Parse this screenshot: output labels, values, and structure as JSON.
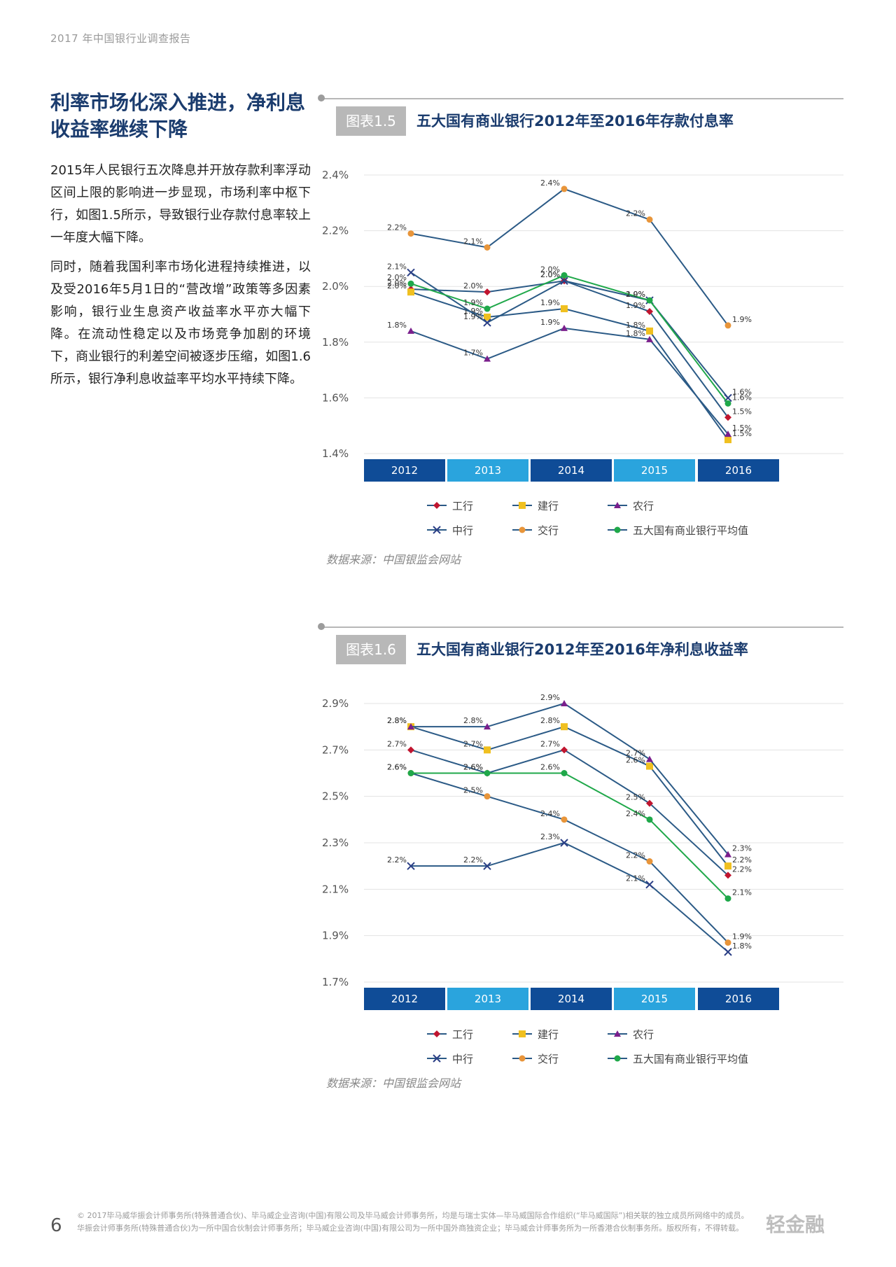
{
  "header": "2017 年中国银行业调查报告",
  "section_title": "利率市场化深入推进，净利息收益率继续下降",
  "paragraphs": [
    "2015年人民银行五次降息并开放存款利率浮动区间上限的影响进一步显现，市场利率中枢下行，如图1.5所示，导致银行业存款付息率较上一年度大幅下降。",
    "同时，随着我国利率市场化进程持续推进，以及受2016年5月1日的“营改增”政策等多因素影响，银行业生息资产收益率水平亦大幅下降。在流动性稳定以及市场竞争加剧的环境下，商业银行的利差空间被逐步压缩，如图1.6所示，银行净利息收益率平均水平持续下降。"
  ],
  "chart_data": [
    {
      "type": "line",
      "figure_label": "图表1.5",
      "title": "五大国有商业银行2012年至2016年存款付息率",
      "categories": [
        "2012",
        "2013",
        "2014",
        "2015",
        "2016"
      ],
      "ylim": [
        1.4,
        2.4
      ],
      "yticks": [
        "1.4%",
        "1.6%",
        "1.8%",
        "2.0%",
        "2.2%",
        "2.4%"
      ],
      "grid": true,
      "legend_position": "bottom",
      "series": [
        {
          "name": "工行",
          "color": "#c0152f",
          "marker": "diamond",
          "values": [
            1.99,
            1.98,
            2.02,
            1.91,
            1.53
          ],
          "labels": [
            "2.0%",
            "2.0%",
            "2.0%",
            "1.9%",
            "1.5%"
          ]
        },
        {
          "name": "建行",
          "color": "#f0c020",
          "marker": "square",
          "values": [
            1.98,
            1.89,
            1.92,
            1.84,
            1.45
          ],
          "labels": [
            "2.0%",
            "1.9%",
            "1.9%",
            "1.8%",
            "1.5%"
          ]
        },
        {
          "name": "农行",
          "color": "#7a1f8c",
          "marker": "triangle",
          "values": [
            1.84,
            1.74,
            1.85,
            1.81,
            1.47
          ],
          "labels": [
            "1.8%",
            "1.7%",
            "1.9%",
            "1.8%",
            "1.5%"
          ]
        },
        {
          "name": "中行",
          "color": "#2b3f86",
          "marker": "x",
          "values": [
            2.05,
            1.87,
            2.02,
            1.95,
            1.6
          ],
          "labels": [
            "2.1%",
            "1.9%",
            "2.0%",
            "1.9%",
            "1.6%"
          ]
        },
        {
          "name": "交行",
          "color": "#e8953a",
          "marker": "circle",
          "values": [
            2.19,
            2.14,
            2.35,
            2.24,
            1.86
          ],
          "labels": [
            "2.2%",
            "2.1%",
            "2.4%",
            "2.2%",
            "1.9%"
          ]
        },
        {
          "name": "五大国有商业银行平均值",
          "color": "#1fa84a",
          "marker": "circle",
          "values": [
            2.01,
            1.92,
            2.04,
            1.95,
            1.58
          ],
          "labels": [
            "2.0%",
            "1.9%",
            "2.0%",
            "2.0%",
            "1.6%"
          ]
        }
      ],
      "source": "数据来源：中国银监会网站"
    },
    {
      "type": "line",
      "figure_label": "图表1.6",
      "title": "五大国有商业银行2012年至2016年净利息收益率",
      "categories": [
        "2012",
        "2013",
        "2014",
        "2015",
        "2016"
      ],
      "ylim": [
        1.7,
        2.9
      ],
      "yticks": [
        "1.7%",
        "1.9%",
        "2.1%",
        "2.3%",
        "2.5%",
        "2.7%",
        "2.9%"
      ],
      "grid": true,
      "legend_position": "bottom",
      "series": [
        {
          "name": "工行",
          "color": "#c0152f",
          "marker": "diamond",
          "values": [
            2.7,
            2.6,
            2.7,
            2.47,
            2.16
          ],
          "labels": [
            "2.7%",
            "2.6%",
            "2.7%",
            "2.5%",
            "2.2%"
          ]
        },
        {
          "name": "建行",
          "color": "#f0c020",
          "marker": "square",
          "values": [
            2.8,
            2.7,
            2.8,
            2.63,
            2.2
          ],
          "labels": [
            "2.8%",
            "2.7%",
            "2.8%",
            "2.6%",
            "2.2%"
          ]
        },
        {
          "name": "农行",
          "color": "#7a1f8c",
          "marker": "triangle",
          "values": [
            2.8,
            2.8,
            2.9,
            2.66,
            2.25
          ],
          "labels": [
            "2.8%",
            "2.8%",
            "2.9%",
            "2.7%",
            "2.3%"
          ]
        },
        {
          "name": "中行",
          "color": "#2b3f86",
          "marker": "x",
          "values": [
            2.2,
            2.2,
            2.3,
            2.12,
            1.83
          ],
          "labels": [
            "2.2%",
            "2.2%",
            "2.3%",
            "2.1%",
            "1.8%"
          ]
        },
        {
          "name": "交行",
          "color": "#e8953a",
          "marker": "circle",
          "values": [
            2.6,
            2.5,
            2.4,
            2.22,
            1.87
          ],
          "labels": [
            "2.6%",
            "2.5%",
            "2.4%",
            "2.2%",
            "1.9%"
          ]
        },
        {
          "name": "五大国有商业银行平均值",
          "color": "#1fa84a",
          "marker": "circle",
          "values": [
            2.6,
            2.6,
            2.6,
            2.4,
            2.06
          ],
          "labels": [
            "2.6%",
            "2.6%",
            "2.6%",
            "2.4%",
            "2.1%"
          ]
        }
      ],
      "source": "数据来源：中国银监会网站"
    }
  ],
  "colors": {
    "title_blue": "#1b3c6e",
    "year_band_dark": "#0f4c97",
    "year_band_light": "#2aa4dd",
    "series_line": "#2b5a86"
  },
  "footer": {
    "page_number": "6",
    "line1": "© 2017毕马威华振会计师事务所(特殊普通合伙)、毕马威企业咨询(中国)有限公司及毕马威会计师事务所，均是与瑞士实体—毕马威国际合作组织(“毕马威国际”)相关联的独立成员所网络中的成员。",
    "line2": "华振会计师事务所(特殊普通合伙)为一所中国合伙制会计师事务所；毕马威企业咨询(中国)有限公司为一所中国外商独资企业；毕马威会计师事务所为一所香港合伙制事务所。版权所有，不得转载。",
    "watermark": "轻金融"
  }
}
